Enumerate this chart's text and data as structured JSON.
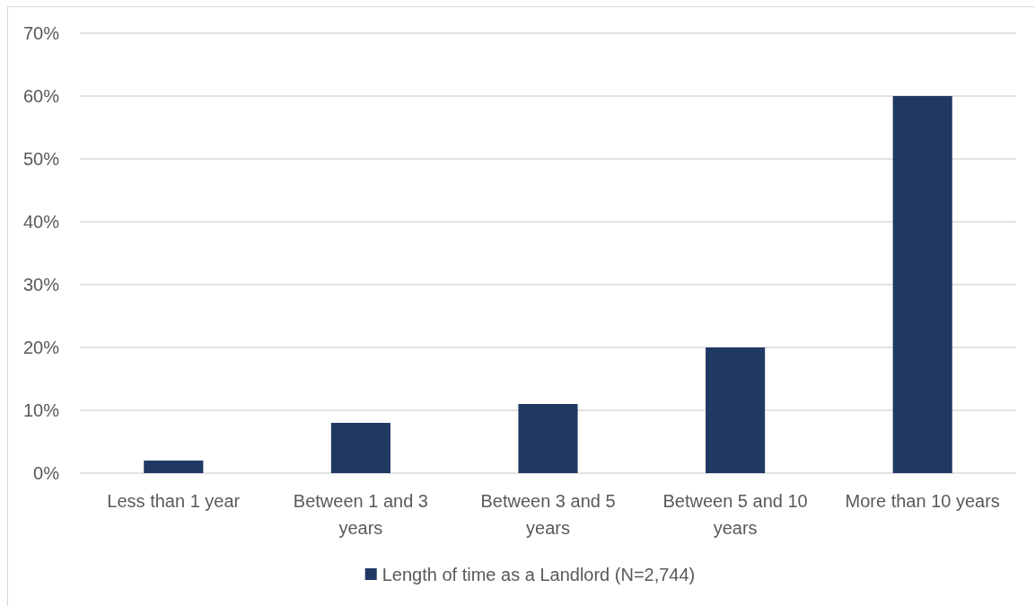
{
  "chart_data": {
    "type": "bar",
    "categories": [
      "Less than 1 year",
      "Between 1 and 3 years",
      "Between 3 and 5 years",
      "Between 5 and 10 years",
      "More than 10 years"
    ],
    "series": [
      {
        "name": "Length of time as a Landlord (N=2,744)",
        "color": "#203864",
        "values": [
          2,
          8,
          11,
          20,
          60
        ]
      }
    ],
    "ylim": [
      0,
      70
    ],
    "yticks": [
      {
        "value": 0,
        "label": "0%"
      },
      {
        "value": 10,
        "label": "10%"
      },
      {
        "value": 20,
        "label": "20%"
      },
      {
        "value": 30,
        "label": "30%"
      },
      {
        "value": 40,
        "label": "40%"
      },
      {
        "value": 50,
        "label": "50%"
      },
      {
        "value": 60,
        "label": "60%"
      },
      {
        "value": 70,
        "label": "70%"
      }
    ],
    "grid": "y",
    "legend": "bottom"
  }
}
